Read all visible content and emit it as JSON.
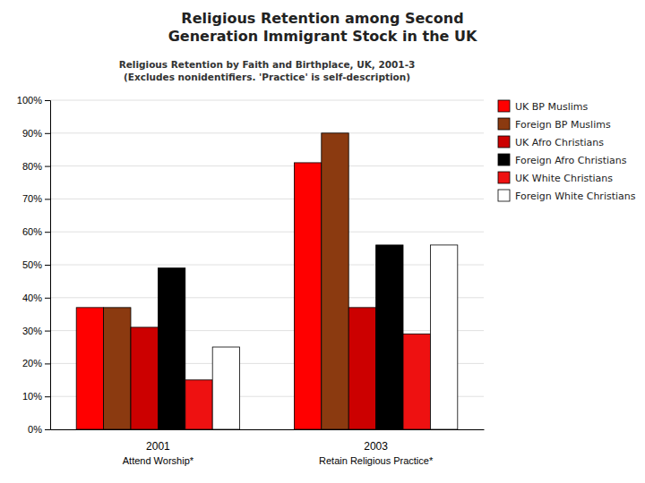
{
  "chart_data": {
    "type": "bar",
    "title": "Religious Retention among Second\nGeneration Immigrant Stock in the UK",
    "subtitle": "Religious Retention by Faith and Birthplace, UK, 2001-3\n(Excludes nonidentifiers. 'Practice' is self-description)",
    "categories": [
      "2001\nAttend Worship*",
      "2003\nRetain Religious Practice*"
    ],
    "series": [
      {
        "name": "UK BP Muslims",
        "color": "#FF0000",
        "values": [
          37,
          81
        ]
      },
      {
        "name": "Foreign BP Muslims",
        "color": "#8B3A10",
        "values": [
          37,
          90
        ]
      },
      {
        "name": "UK Afro Christians",
        "color": "#CC0000",
        "values": [
          31,
          37
        ]
      },
      {
        "name": "Foreign Afro Christians",
        "color": "#000000",
        "values": [
          49,
          56
        ]
      },
      {
        "name": "UK White Christians",
        "color": "#EE1111",
        "values": [
          15,
          29
        ]
      },
      {
        "name": "Foreign White Christians",
        "color": "#FFFFFF",
        "values": [
          25,
          56
        ]
      }
    ],
    "ylim": [
      0,
      100
    ],
    "yticks": [
      {
        "value": 0,
        "label": "0%"
      },
      {
        "value": 10,
        "label": "10%"
      },
      {
        "value": 20,
        "label": "20%"
      },
      {
        "value": 30,
        "label": "30%"
      },
      {
        "value": 40,
        "label": "40%"
      },
      {
        "value": 50,
        "label": "50%"
      },
      {
        "value": 60,
        "label": "60%"
      },
      {
        "value": 70,
        "label": "70%"
      },
      {
        "value": 80,
        "label": "80%"
      },
      {
        "value": 90,
        "label": "90%"
      },
      {
        "value": 100,
        "label": "100%"
      }
    ],
    "grid": true,
    "legend": "upper right"
  }
}
